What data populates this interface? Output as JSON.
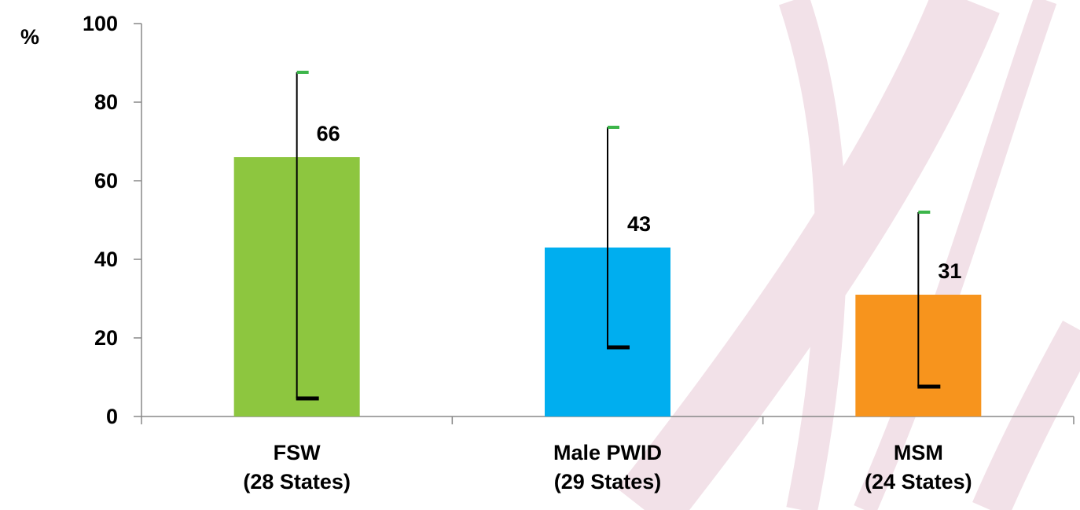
{
  "chart_data": {
    "type": "bar",
    "y_label": "%",
    "categories": [
      [
        "FSW",
        "(28 States)"
      ],
      [
        "Male PWID",
        "(29 States)"
      ],
      [
        "MSM",
        "(24 States)"
      ]
    ],
    "values": [
      66,
      43,
      31
    ],
    "error_low": [
      4.6,
      17.6,
      7.6
    ],
    "error_high": [
      87.6,
      73.6,
      52
    ],
    "colors": [
      "#8dc63f",
      "#00aeef",
      "#f7941d"
    ],
    "ylim": [
      0,
      100
    ],
    "yticks": [
      0,
      20,
      40,
      60,
      80,
      100
    ]
  }
}
